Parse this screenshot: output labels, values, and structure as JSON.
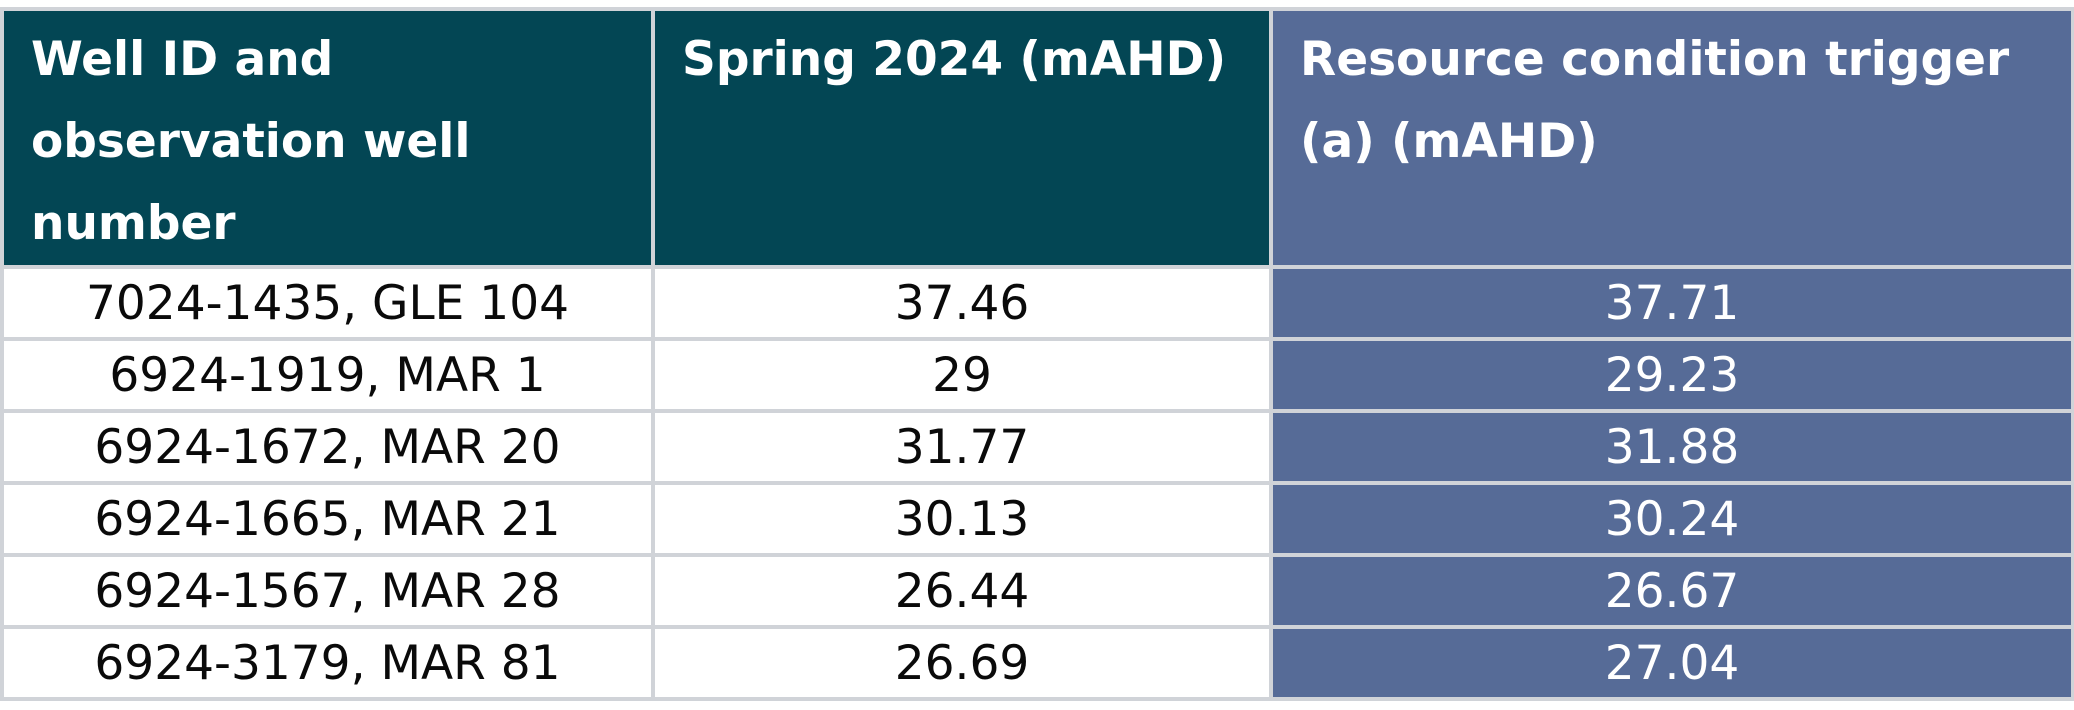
{
  "table": {
    "headers": [
      "Well ID and observation well number",
      "Spring 2024 (mAHD)",
      "Resource condition trigger (a) (mAHD)"
    ],
    "rows": [
      [
        "7024-1435, GLE 104",
        "37.46",
        "37.71"
      ],
      [
        "6924-1919, MAR 1",
        "29",
        "29.23"
      ],
      [
        "6924-1672, MAR 20",
        "31.77",
        "31.88"
      ],
      [
        "6924-1665, MAR 21",
        "30.13",
        "30.24"
      ],
      [
        "6924-1567, MAR 28",
        "26.44",
        "26.67"
      ],
      [
        "6924-3179, MAR 81",
        "26.69",
        "27.04"
      ]
    ]
  },
  "colors": {
    "header_dark": "#034654",
    "header_blue": "#566b97",
    "trigger_column": "#566b97",
    "grid": "#d0d3d8"
  }
}
